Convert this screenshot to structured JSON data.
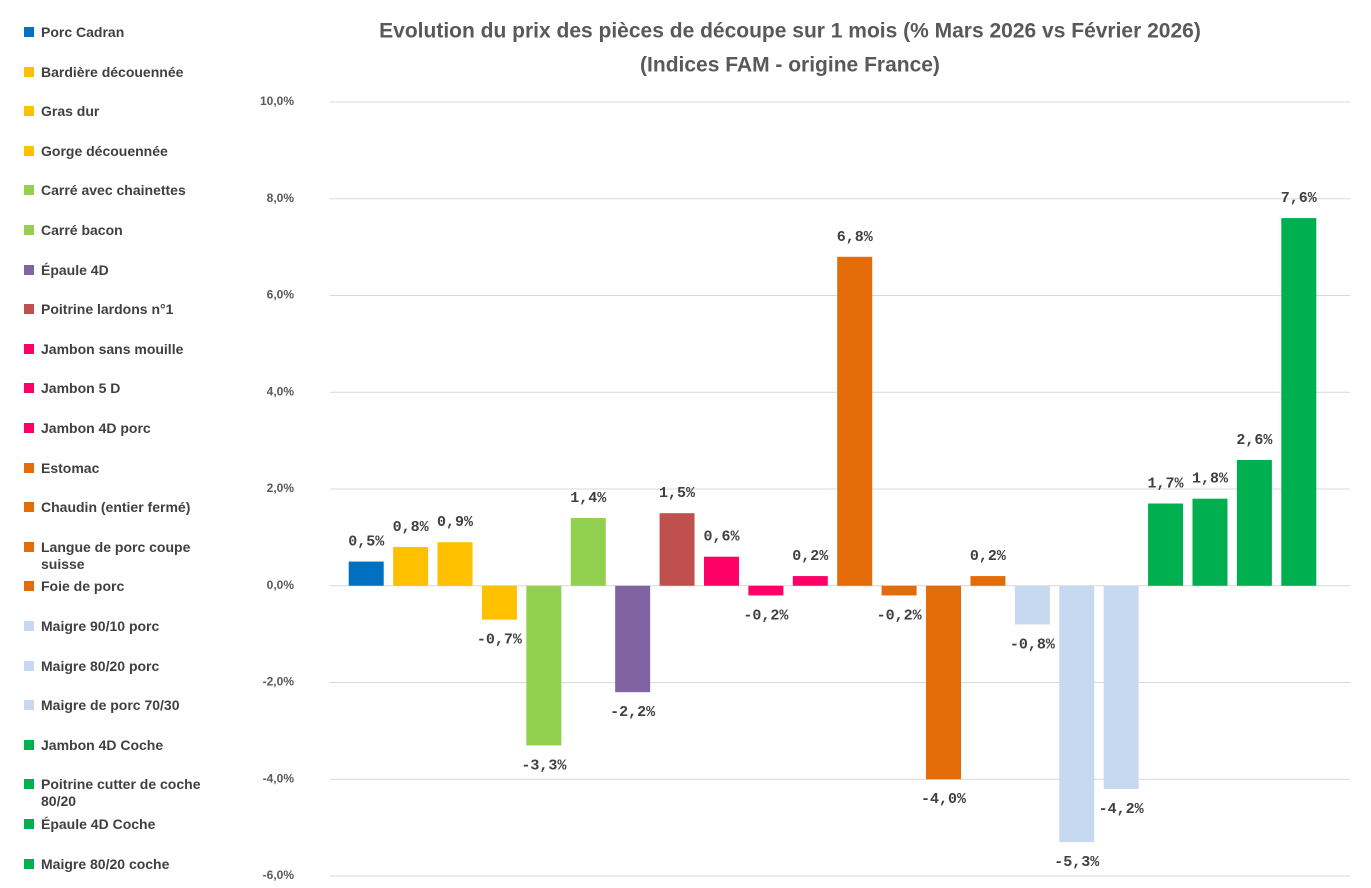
{
  "chart_data": {
    "type": "bar",
    "title": [
      "Evolution du prix des pièces de découpe sur 1 mois (% Mars 2026 vs Février 2026)",
      "(Indices FAM - origine France)"
    ],
    "categories": [
      "Porc Cadran",
      "Bardière découennée",
      "Gras dur",
      "Gorge découennée",
      "Carré avec chainettes",
      "Carré bacon",
      "Épaule 4D",
      "Poitrine lardons n°1",
      "Jambon sans mouille",
      "Jambon 5 D",
      "Jambon 4D porc",
      "Estomac",
      "Chaudin (entier fermé)",
      "Langue de porc coupe suisse",
      "Foie de porc",
      "Maigre 90/10 porc",
      "Maigre 80/20 porc",
      "Maigre de porc 70/30",
      "Jambon 4D Coche",
      "Poitrine cutter de coche 80/20",
      "Épaule 4D Coche",
      "Maigre 80/20 coche"
    ],
    "values": [
      0.5,
      0.8,
      0.9,
      -0.7,
      -3.3,
      1.4,
      -2.2,
      1.5,
      0.6,
      -0.2,
      0.2,
      6.8,
      -0.2,
      -4.0,
      0.2,
      -0.8,
      -5.3,
      -4.2,
      1.7,
      1.8,
      2.6,
      7.6
    ],
    "value_labels": [
      "0,5%",
      "0,8%",
      "0,9%",
      "-0,7%",
      "-3,3%",
      "1,4%",
      "-2,2%",
      "1,5%",
      "0,6%",
      "-0,2%",
      "0,2%",
      "6,8%",
      "-0,2%",
      "-4,0%",
      "0,2%",
      "-0,8%",
      "-5,3%",
      "-4,2%",
      "1,7%",
      "1,8%",
      "2,6%",
      "7,6%"
    ],
    "colors": [
      "#0070c0",
      "#ffc000",
      "#ffc000",
      "#ffc000",
      "#92d050",
      "#92d050",
      "#8064a2",
      "#c0504d",
      "#ff0066",
      "#ff0066",
      "#ff0066",
      "#e36c09",
      "#e36c09",
      "#e36c09",
      "#e36c09",
      "#c6d9f1",
      "#c6d9f1",
      "#c6d9f1",
      "#00b050",
      "#00b050",
      "#00b050",
      "#00b050"
    ],
    "ylim": [
      -6,
      10
    ],
    "yticks": [
      {
        "value": -6,
        "label": "-6,0%"
      },
      {
        "value": -4,
        "label": "-4,0%"
      },
      {
        "value": -2,
        "label": "-2,0%"
      },
      {
        "value": 0,
        "label": "0,0%"
      },
      {
        "value": 2,
        "label": "2,0%"
      },
      {
        "value": 4,
        "label": "4,0%"
      },
      {
        "value": 6,
        "label": "6,0%"
      },
      {
        "value": 8,
        "label": "8,0%"
      },
      {
        "value": 10,
        "label": "10,0%"
      }
    ],
    "grid": true,
    "legend": "left"
  }
}
